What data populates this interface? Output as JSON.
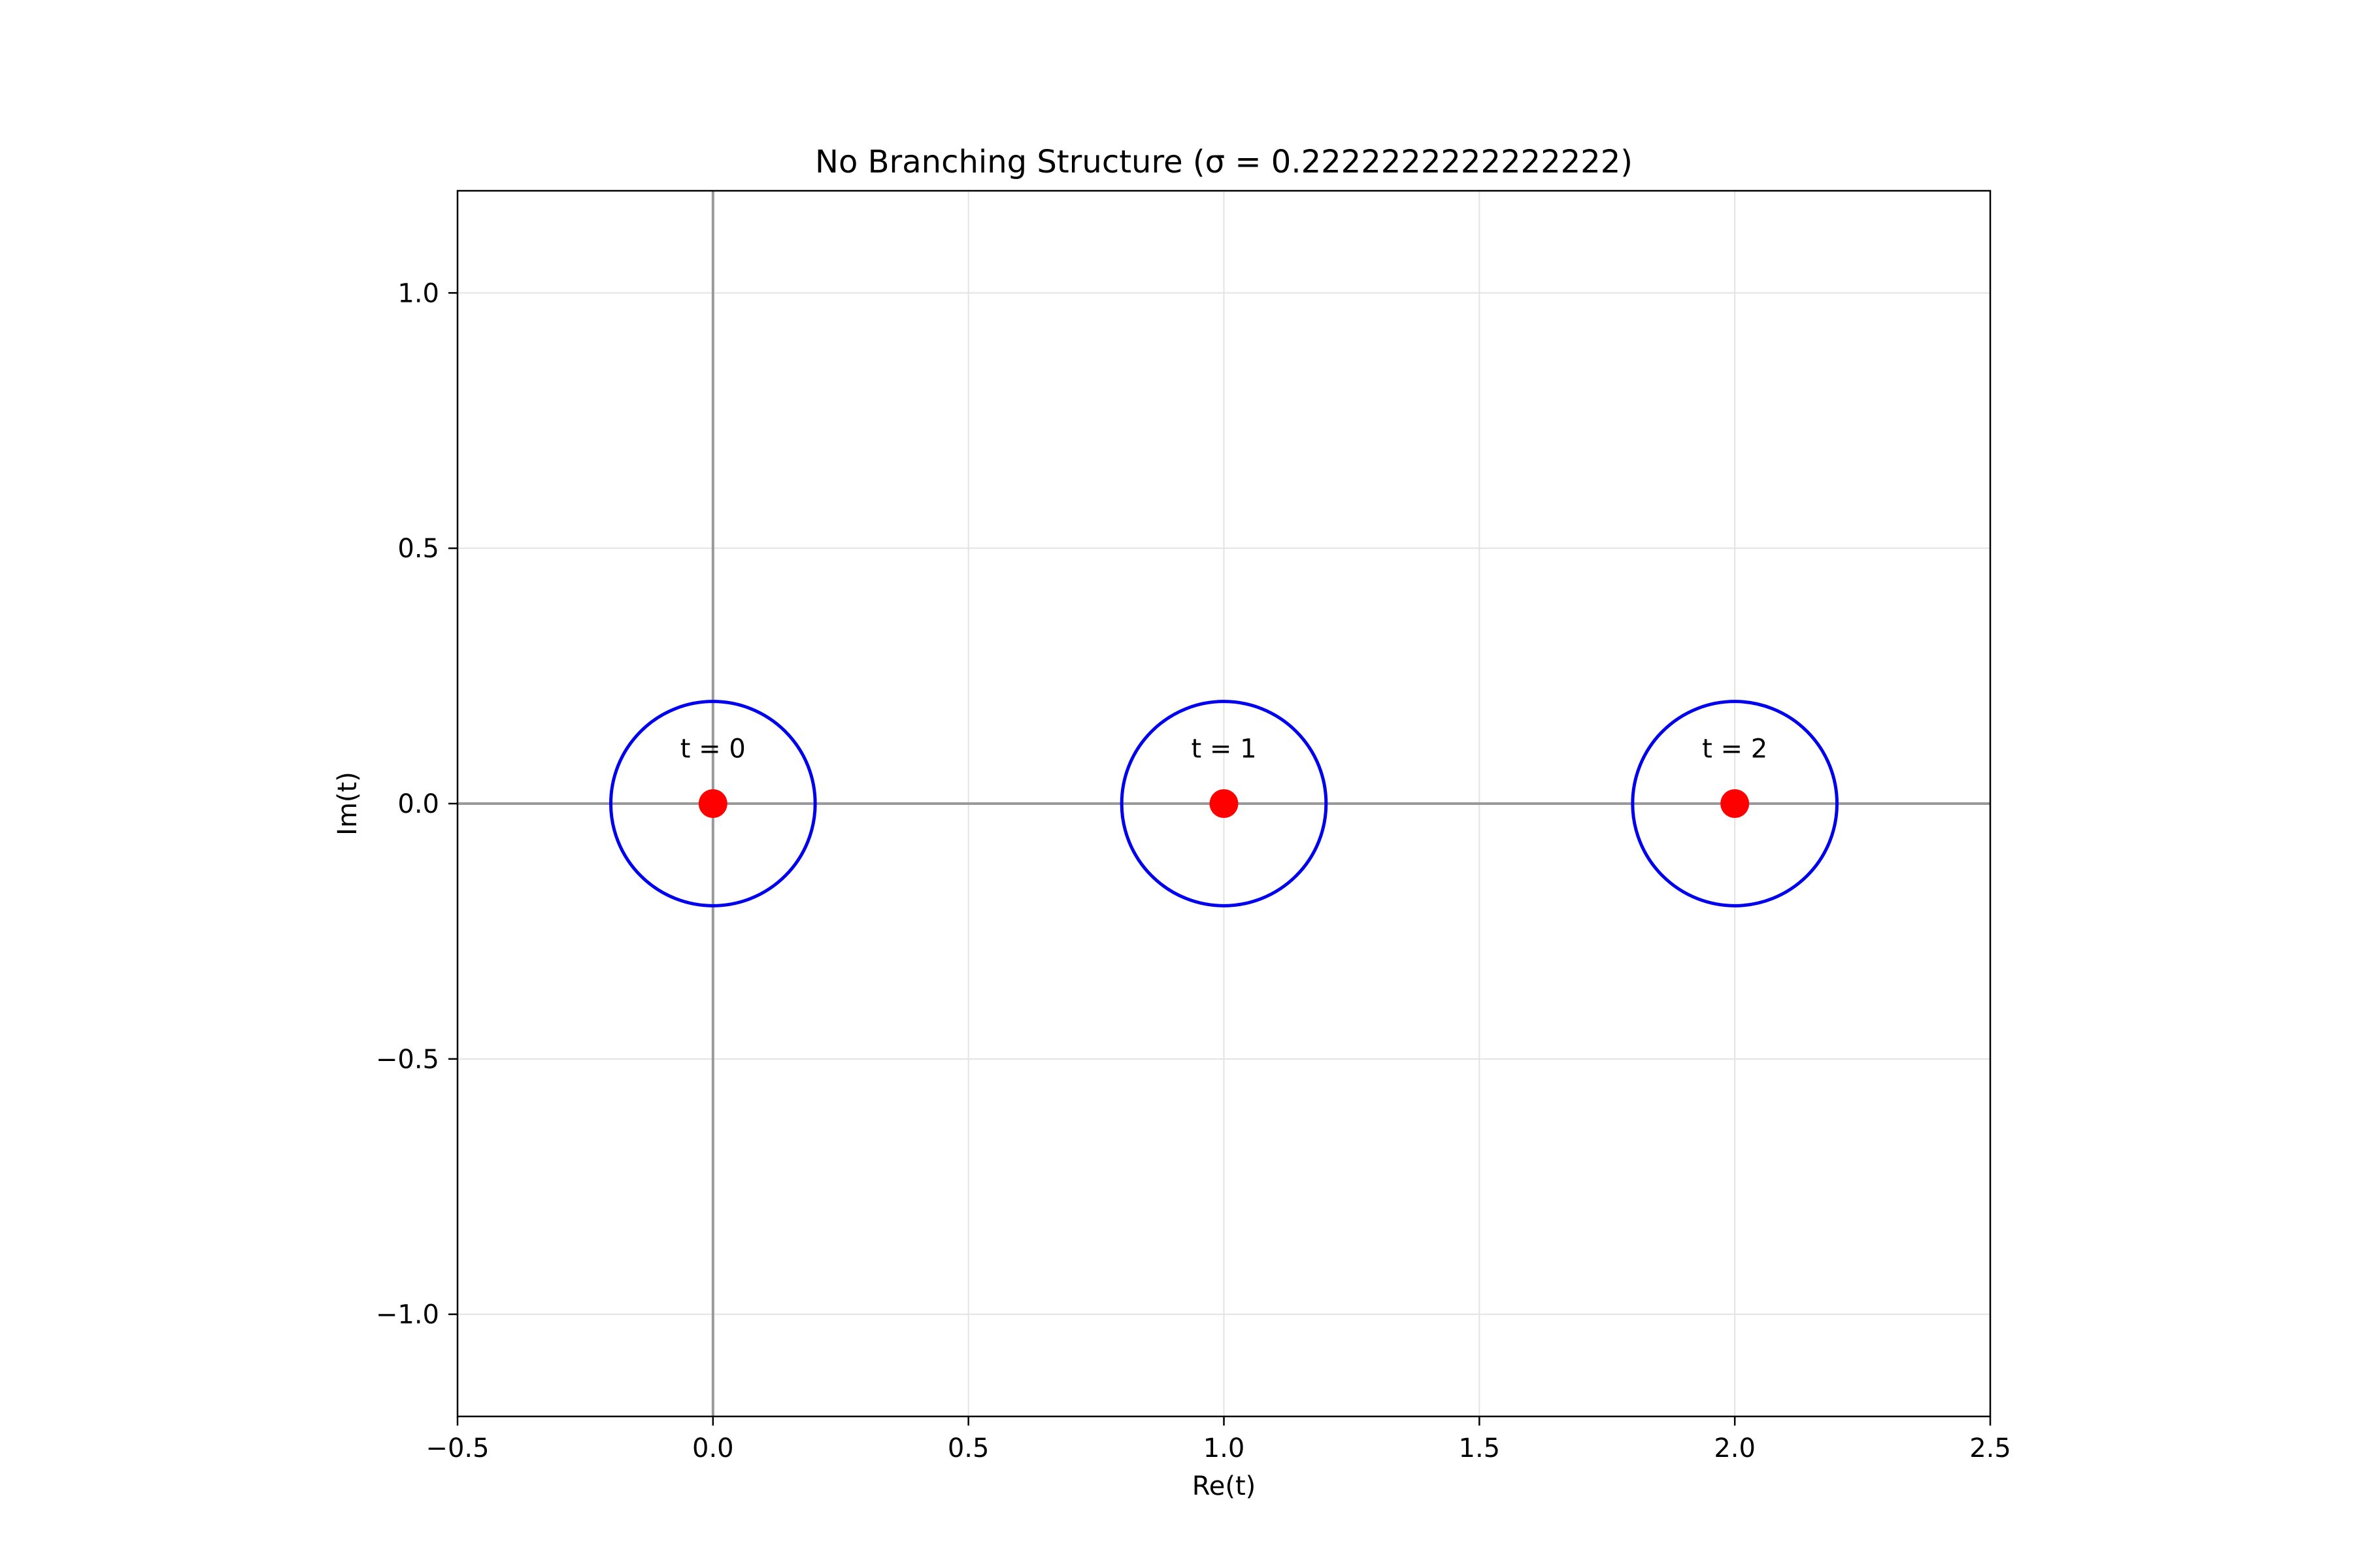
{
  "chart_data": {
    "type": "scatter",
    "title": "No Branching Structure (σ = 0.2222222222222222)",
    "xlabel": "Re(t)",
    "ylabel": "Im(t)",
    "xlim": [
      -0.5,
      2.5
    ],
    "ylim": [
      -1.2,
      1.2
    ],
    "xticks": [
      -0.5,
      0.0,
      0.5,
      1.0,
      1.5,
      2.0,
      2.5
    ],
    "xtick_labels": [
      "−0.5",
      "0.0",
      "0.5",
      "1.0",
      "1.5",
      "2.0",
      "2.5"
    ],
    "yticks": [
      -1.0,
      -0.5,
      0.0,
      0.5,
      1.0
    ],
    "ytick_labels": [
      "−1.0",
      "−0.5",
      "0.0",
      "0.5",
      "1.0"
    ],
    "grid": true,
    "reference_lines": {
      "x": 0,
      "y": 0,
      "color": "#999999"
    },
    "points": [
      {
        "x": 0,
        "y": 0,
        "label": "t = 0"
      },
      {
        "x": 1,
        "y": 0,
        "label": "t = 1"
      },
      {
        "x": 2,
        "y": 0,
        "label": "t = 2"
      }
    ],
    "point_color": "#ff0000",
    "circles": [
      {
        "cx": 0,
        "cy": 0,
        "r": 0.2
      },
      {
        "cx": 1,
        "cy": 0,
        "r": 0.2
      },
      {
        "cx": 2,
        "cy": 0,
        "r": 0.2
      }
    ],
    "circle_color": "#0000ee"
  }
}
